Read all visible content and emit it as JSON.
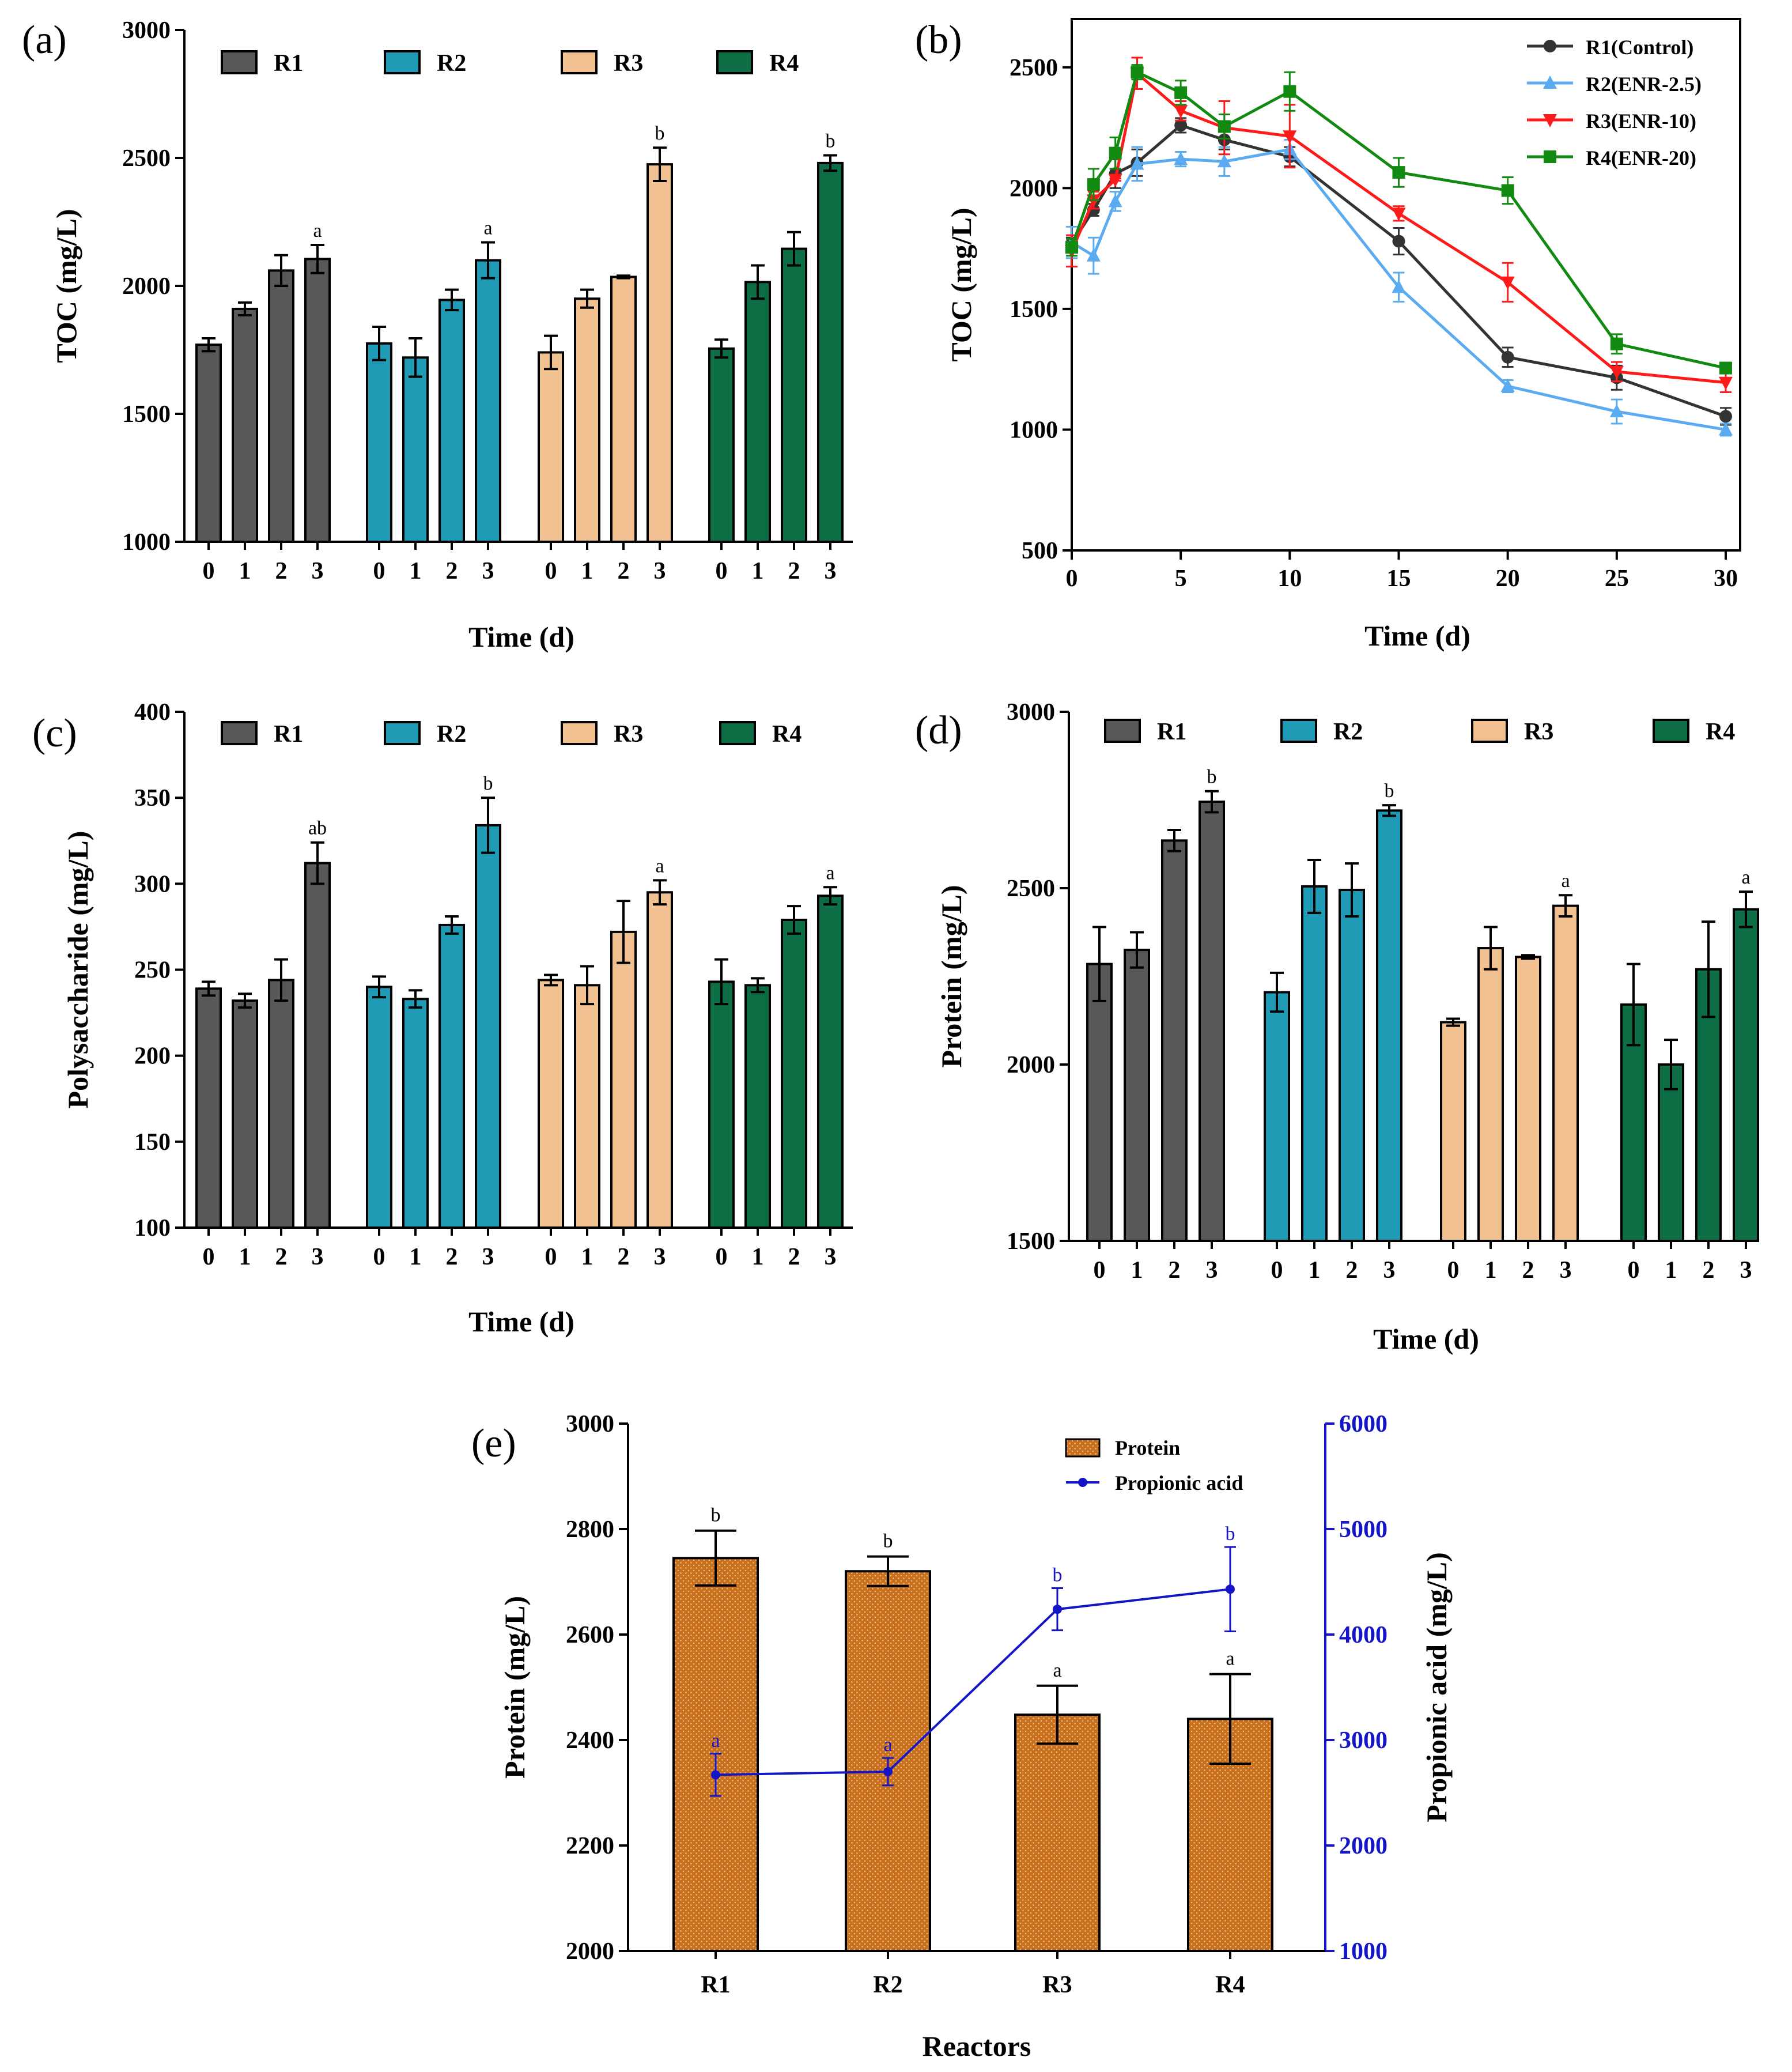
{
  "chart_data": [
    {
      "panel": "(a)",
      "type": "bar",
      "xlabel": "Time (d)",
      "ylabel": "TOC (mg/L)",
      "ylim": [
        1000,
        3000
      ],
      "yticks": [
        1000,
        1500,
        2000,
        2500,
        3000
      ],
      "categories": [
        "0",
        "1",
        "2",
        "3"
      ],
      "series": [
        {
          "name": "R1",
          "color": "#58585a",
          "values": [
            1770,
            1910,
            2060,
            2105
          ],
          "errors": [
            25,
            25,
            60,
            55
          ],
          "sig": [
            null,
            null,
            null,
            "a"
          ]
        },
        {
          "name": "R2",
          "color": "#1f9bb5",
          "values": [
            1775,
            1720,
            1945,
            2100
          ],
          "errors": [
            65,
            75,
            40,
            70
          ],
          "sig": [
            null,
            null,
            null,
            "a"
          ]
        },
        {
          "name": "R3",
          "color": "#f2c191",
          "values": [
            1740,
            1950,
            2035,
            2475
          ],
          "errors": [
            65,
            35,
            5,
            65
          ],
          "sig": [
            null,
            null,
            null,
            "b"
          ]
        },
        {
          "name": "R4",
          "color": "#0d6e45",
          "values": [
            1755,
            2015,
            2145,
            2480
          ],
          "errors": [
            35,
            65,
            65,
            30
          ],
          "sig": [
            null,
            null,
            null,
            "b"
          ]
        }
      ]
    },
    {
      "panel": "(b)",
      "type": "line",
      "xlabel": "Time (d)",
      "ylabel": "TOC (mg/L)",
      "xlim": [
        0,
        30
      ],
      "ylim": [
        500,
        2700
      ],
      "xticks": [
        0,
        5,
        10,
        15,
        20,
        25,
        30
      ],
      "yticks": [
        500,
        1000,
        1500,
        2000,
        2500
      ],
      "x": [
        0,
        1,
        2,
        3,
        5,
        7,
        10,
        15,
        20,
        25,
        30
      ],
      "series": [
        {
          "name": "R1(Control)",
          "color": "#333333",
          "marker": "circle",
          "values": [
            1770,
            1910,
            2060,
            2105,
            2260,
            2200,
            2130,
            1780,
            1300,
            1215,
            1055
          ],
          "errors": [
            25,
            25,
            60,
            55,
            30,
            40,
            40,
            55,
            40,
            50,
            35
          ]
        },
        {
          "name": "R2(ENR-2.5)",
          "color": "#5aabf0",
          "marker": "triangle-up",
          "values": [
            1775,
            1720,
            1945,
            2100,
            2120,
            2110,
            2160,
            1590,
            1180,
            1075,
            1000
          ],
          "errors": [
            65,
            75,
            40,
            70,
            30,
            60,
            40,
            60,
            25,
            50,
            25
          ]
        },
        {
          "name": "R3(ENR-10)",
          "color": "#ff1a1a",
          "marker": "triangle-down",
          "values": [
            1740,
            1950,
            2035,
            2475,
            2320,
            2250,
            2215,
            1895,
            1610,
            1240,
            1195
          ],
          "errors": [
            65,
            35,
            5,
            65,
            40,
            110,
            130,
            30,
            80,
            40,
            40
          ]
        },
        {
          "name": "R4(ENR-20)",
          "color": "#128a12",
          "marker": "square",
          "values": [
            1755,
            2015,
            2145,
            2480,
            2395,
            2255,
            2400,
            2065,
            1990,
            1355,
            1255
          ],
          "errors": [
            35,
            65,
            65,
            30,
            50,
            50,
            80,
            60,
            55,
            40,
            20
          ]
        }
      ]
    },
    {
      "panel": "(c)",
      "type": "bar",
      "xlabel": "Time (d)",
      "ylabel": "Polysaccharide (mg/L)",
      "ylim": [
        100,
        400
      ],
      "yticks": [
        100,
        150,
        200,
        250,
        300,
        350,
        400
      ],
      "categories": [
        "0",
        "1",
        "2",
        "3"
      ],
      "series": [
        {
          "name": "R1",
          "color": "#58585a",
          "values": [
            239,
            232,
            244,
            312
          ],
          "errors": [
            4,
            4,
            12,
            12
          ],
          "sig": [
            null,
            null,
            null,
            "ab"
          ]
        },
        {
          "name": "R2",
          "color": "#1f9bb5",
          "values": [
            240,
            233,
            276,
            334
          ],
          "errors": [
            6,
            5,
            5,
            16
          ],
          "sig": [
            null,
            null,
            null,
            "b"
          ]
        },
        {
          "name": "R3",
          "color": "#f2c191",
          "values": [
            244,
            241,
            272,
            295
          ],
          "errors": [
            3,
            11,
            18,
            7
          ],
          "sig": [
            null,
            null,
            null,
            "a"
          ]
        },
        {
          "name": "R4",
          "color": "#0d6e45",
          "values": [
            243,
            241,
            279,
            293
          ],
          "errors": [
            13,
            4,
            8,
            5
          ],
          "sig": [
            null,
            null,
            null,
            "a"
          ]
        }
      ]
    },
    {
      "panel": "(d)",
      "type": "bar",
      "xlabel": "Time (d)",
      "ylabel": "Protein (mg/L)",
      "ylim": [
        1500,
        3000
      ],
      "yticks": [
        1500,
        2000,
        2500,
        3000
      ],
      "categories": [
        "0",
        "1",
        "2",
        "3"
      ],
      "series": [
        {
          "name": "R1",
          "color": "#58585a",
          "values": [
            2285,
            2325,
            2635,
            2745
          ],
          "errors": [
            105,
            50,
            30,
            30
          ],
          "sig": [
            null,
            null,
            null,
            "b"
          ]
        },
        {
          "name": "R2",
          "color": "#1f9bb5",
          "values": [
            2205,
            2505,
            2495,
            2720
          ],
          "errors": [
            55,
            75,
            75,
            15
          ],
          "sig": [
            null,
            null,
            null,
            "b"
          ]
        },
        {
          "name": "R3",
          "color": "#f2c191",
          "values": [
            2120,
            2330,
            2305,
            2450
          ],
          "errors": [
            10,
            60,
            5,
            30
          ],
          "sig": [
            null,
            null,
            null,
            "a"
          ]
        },
        {
          "name": "R4",
          "color": "#0d6e45",
          "values": [
            2170,
            2000,
            2270,
            2440
          ],
          "errors": [
            115,
            70,
            135,
            50
          ],
          "sig": [
            null,
            null,
            null,
            "a"
          ]
        }
      ]
    },
    {
      "panel": "(e)",
      "type": "bar",
      "xlabel": "Reactors",
      "ylabel": "Protein (mg/L)",
      "y2label": "Propionic acid (mg/L)",
      "ylim": [
        2000,
        3000
      ],
      "yticks": [
        2000,
        2200,
        2400,
        2600,
        2800,
        3000
      ],
      "y2lim": [
        1000,
        6000
      ],
      "y2ticks": [
        1000,
        2000,
        3000,
        4000,
        5000,
        6000
      ],
      "categories": [
        "R1",
        "R2",
        "R3",
        "R4"
      ],
      "series": [
        {
          "name": "Protein",
          "color": "#c8701d",
          "values": [
            2745,
            2720,
            2448,
            2440
          ],
          "errors": [
            52,
            28,
            55,
            85
          ],
          "sig": [
            "b",
            "b",
            "a",
            "a"
          ]
        },
        {
          "name": "Propionic acid",
          "color": "#1515c8",
          "axis": "right",
          "values": [
            2670,
            2700,
            4240,
            4430
          ],
          "errors": [
            200,
            130,
            200,
            400
          ],
          "sig": [
            "a",
            "a",
            "b",
            "b"
          ]
        }
      ]
    }
  ]
}
